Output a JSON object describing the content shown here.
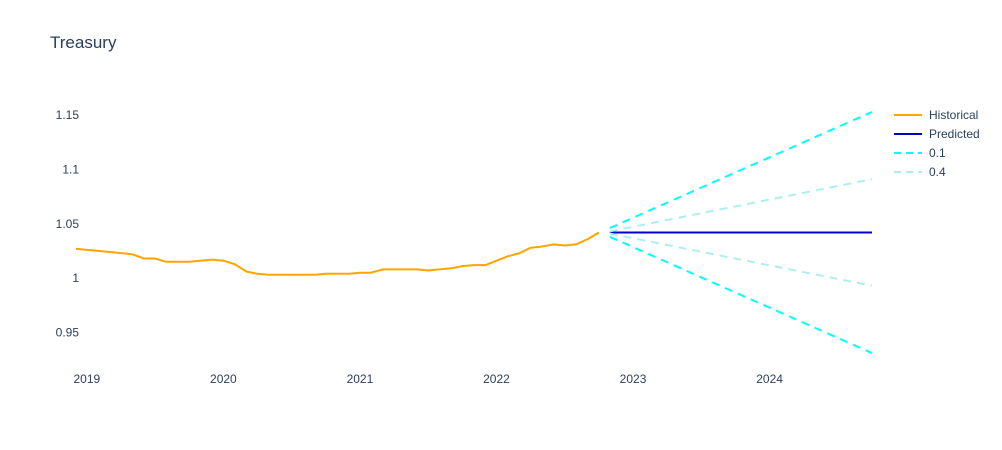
{
  "chart_data": {
    "type": "line",
    "title": "Treasury",
    "xlabel": "",
    "ylabel": "",
    "xlim": [
      2018.95,
      2024.75
    ],
    "ylim": [
      0.92,
      1.175
    ],
    "x_ticks": [
      {
        "value": 2019,
        "label": "2019"
      },
      {
        "value": 2020,
        "label": "2020"
      },
      {
        "value": 2021,
        "label": "2021"
      },
      {
        "value": 2022,
        "label": "2022"
      },
      {
        "value": 2023,
        "label": "2023"
      },
      {
        "value": 2024,
        "label": "2024"
      }
    ],
    "y_ticks": [
      {
        "value": 0.95,
        "label": "0.95"
      },
      {
        "value": 1.0,
        "label": "1"
      },
      {
        "value": 1.05,
        "label": "1.05"
      },
      {
        "value": 1.1,
        "label": "1.1"
      },
      {
        "value": 1.15,
        "label": "1.15"
      }
    ],
    "legend_position": "top-right",
    "series": [
      {
        "name": "Historical",
        "color": "#ffa500",
        "dash": "solid",
        "width": 2,
        "x": [
          2018.92,
          2019.0,
          2019.08,
          2019.17,
          2019.25,
          2019.33,
          2019.42,
          2019.5,
          2019.58,
          2019.67,
          2019.75,
          2019.83,
          2019.92,
          2020.0,
          2020.08,
          2020.17,
          2020.25,
          2020.33,
          2020.42,
          2020.5,
          2020.58,
          2020.67,
          2020.75,
          2020.83,
          2020.92,
          2021.0,
          2021.08,
          2021.17,
          2021.25,
          2021.33,
          2021.42,
          2021.5,
          2021.58,
          2021.67,
          2021.75,
          2021.83,
          2021.92,
          2022.0,
          2022.08,
          2022.17,
          2022.25,
          2022.33,
          2022.42,
          2022.5,
          2022.58,
          2022.67,
          2022.75
        ],
        "values": [
          1.027,
          1.026,
          1.025,
          1.024,
          1.023,
          1.022,
          1.018,
          1.018,
          1.015,
          1.015,
          1.015,
          1.016,
          1.017,
          1.016,
          1.013,
          1.006,
          1.004,
          1.003,
          1.003,
          1.003,
          1.003,
          1.003,
          1.004,
          1.004,
          1.004,
          1.005,
          1.005,
          1.008,
          1.008,
          1.008,
          1.008,
          1.007,
          1.008,
          1.009,
          1.011,
          1.012,
          1.012,
          1.016,
          1.02,
          1.023,
          1.028,
          1.029,
          1.031,
          1.03,
          1.031,
          1.036,
          1.042
        ]
      },
      {
        "name": "Predicted",
        "color": "#0000cd",
        "dash": "solid",
        "width": 2,
        "x": [
          2022.83,
          2024.75
        ],
        "values": [
          1.042,
          1.042
        ]
      },
      {
        "name": "0.1",
        "color": "#00ffff",
        "dash": "dash",
        "width": 2,
        "upper": {
          "x": [
            2022.83,
            2024.75
          ],
          "values": [
            1.046,
            1.153
          ]
        },
        "lower": {
          "x": [
            2022.83,
            2024.75
          ],
          "values": [
            1.038,
            0.931
          ]
        }
      },
      {
        "name": "0.4",
        "color": "#afeeee",
        "dash": "dash",
        "width": 2,
        "upper": {
          "x": [
            2022.83,
            2024.75
          ],
          "values": [
            1.043,
            1.091
          ]
        },
        "lower": {
          "x": [
            2022.83,
            2024.75
          ],
          "values": [
            1.041,
            0.993
          ]
        }
      }
    ]
  }
}
